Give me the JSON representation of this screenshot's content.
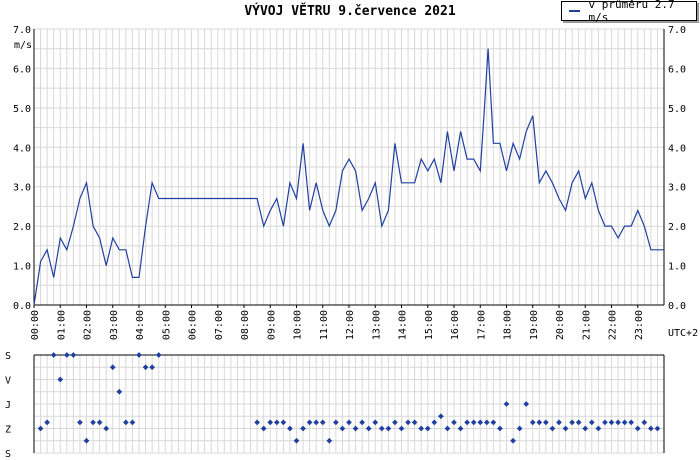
{
  "title": "VÝVOJ VĚTRU  9.července 2021",
  "legend": {
    "label": "v průměru 2.7 m/s",
    "color": "#2040a0"
  },
  "timezone_label": "UTC+2",
  "y_unit": "m/s",
  "colors": {
    "line": "#2040a0",
    "grid": "#d8d8d8",
    "axis": "#000000"
  },
  "chart_data": [
    {
      "type": "line",
      "title": "VÝVOJ VĚTRU  9.července 2021",
      "ylabel": "m/s",
      "ylim": [
        0,
        7
      ],
      "xlim": [
        0,
        24
      ],
      "grid": true,
      "legend_position": "top-right",
      "y_ticks": [
        "0.0",
        "1.0",
        "2.0",
        "3.0",
        "4.0",
        "5.0",
        "6.0",
        "7.0"
      ],
      "x_ticks": [
        "00:00",
        "01:00",
        "02:00",
        "03:00",
        "04:00",
        "05:00",
        "06:00",
        "07:00",
        "08:00",
        "09:00",
        "10:00",
        "11:00",
        "12:00",
        "13:00",
        "14:00",
        "15:00",
        "16:00",
        "17:00",
        "18:00",
        "19:00",
        "20:00",
        "21:00",
        "22:00",
        "23:00"
      ],
      "series": [
        {
          "name": "v průměru 2.7 m/s",
          "x": [
            0,
            0.25,
            0.5,
            0.75,
            1.0,
            1.25,
            1.5,
            1.75,
            2.0,
            2.25,
            2.5,
            2.75,
            3.0,
            3.25,
            3.5,
            3.75,
            4.0,
            4.25,
            4.5,
            4.75,
            5.0,
            8.5,
            8.75,
            9.0,
            9.25,
            9.5,
            9.75,
            10.0,
            10.25,
            10.5,
            10.75,
            11.0,
            11.25,
            11.5,
            11.75,
            12.0,
            12.25,
            12.5,
            12.75,
            13.0,
            13.25,
            13.5,
            13.75,
            14.0,
            14.25,
            14.5,
            14.75,
            15.0,
            15.25,
            15.5,
            15.75,
            16.0,
            16.25,
            16.5,
            16.75,
            17.0,
            17.15,
            17.3,
            17.5,
            17.75,
            18.0,
            18.25,
            18.5,
            18.75,
            19.0,
            19.25,
            19.5,
            19.75,
            20.0,
            20.25,
            20.5,
            20.75,
            21.0,
            21.25,
            21.5,
            21.75,
            22.0,
            22.25,
            22.5,
            22.75,
            23.0,
            23.25,
            23.5,
            23.75,
            24.0
          ],
          "y": [
            0.0,
            1.1,
            1.4,
            0.7,
            1.7,
            1.4,
            2.0,
            2.7,
            3.1,
            2.0,
            1.7,
            1.0,
            1.7,
            1.4,
            1.4,
            0.7,
            0.7,
            2.0,
            3.1,
            2.7,
            2.7,
            2.7,
            2.0,
            2.4,
            2.7,
            2.0,
            3.1,
            2.7,
            4.1,
            2.4,
            3.1,
            2.4,
            2.0,
            2.4,
            3.4,
            3.7,
            3.4,
            2.4,
            2.7,
            3.1,
            2.0,
            2.4,
            4.1,
            3.1,
            3.1,
            3.1,
            3.7,
            3.4,
            3.7,
            3.1,
            4.4,
            3.4,
            4.4,
            3.7,
            3.7,
            3.4,
            4.9,
            6.5,
            4.1,
            4.1,
            3.4,
            4.1,
            3.7,
            4.4,
            4.8,
            3.1,
            3.4,
            3.1,
            2.7,
            2.4,
            3.1,
            3.4,
            2.7,
            3.1,
            2.4,
            2.0,
            2.0,
            1.7,
            2.0,
            2.0,
            2.4,
            2.0,
            1.4,
            1.4,
            1.4
          ]
        }
      ]
    },
    {
      "type": "scatter",
      "y_categories": [
        "S",
        "V",
        "J",
        "Z",
        "S"
      ],
      "xlim": [
        0,
        24
      ],
      "grid": true,
      "points": [
        {
          "x": 0.25,
          "dir": "Z"
        },
        {
          "x": 0.5,
          "dir": "Z/J"
        },
        {
          "x": 0.75,
          "dir": "S"
        },
        {
          "x": 1.0,
          "dir": "V"
        },
        {
          "x": 1.25,
          "dir": "S"
        },
        {
          "x": 1.5,
          "dir": "S"
        },
        {
          "x": 1.75,
          "dir": "Z/J"
        },
        {
          "x": 2.0,
          "dir": "Z/S"
        },
        {
          "x": 2.25,
          "dir": "Z/J"
        },
        {
          "x": 2.5,
          "dir": "Z/J"
        },
        {
          "x": 2.75,
          "dir": "Z"
        },
        {
          "x": 3.0,
          "dir": "S/V"
        },
        {
          "x": 3.25,
          "dir": "J/V"
        },
        {
          "x": 3.5,
          "dir": "Z/J"
        },
        {
          "x": 3.75,
          "dir": "Z/J"
        },
        {
          "x": 4.0,
          "dir": "S"
        },
        {
          "x": 4.25,
          "dir": "S/V"
        },
        {
          "x": 4.5,
          "dir": "S/V"
        },
        {
          "x": 4.75,
          "dir": "S"
        },
        {
          "x": 8.5,
          "dir": "Z/J"
        },
        {
          "x": 8.75,
          "dir": "Z"
        },
        {
          "x": 9.0,
          "dir": "Z/J"
        },
        {
          "x": 9.25,
          "dir": "Z/J"
        },
        {
          "x": 9.5,
          "dir": "Z/J"
        },
        {
          "x": 9.75,
          "dir": "Z"
        },
        {
          "x": 10.0,
          "dir": "Z/S"
        },
        {
          "x": 10.25,
          "dir": "Z"
        },
        {
          "x": 10.5,
          "dir": "Z/J"
        },
        {
          "x": 10.75,
          "dir": "Z/J"
        },
        {
          "x": 11.0,
          "dir": "Z/J"
        },
        {
          "x": 11.25,
          "dir": "Z/S"
        },
        {
          "x": 11.5,
          "dir": "Z/J"
        },
        {
          "x": 11.75,
          "dir": "Z"
        },
        {
          "x": 12.0,
          "dir": "Z/J"
        },
        {
          "x": 12.25,
          "dir": "Z"
        },
        {
          "x": 12.5,
          "dir": "Z/J"
        },
        {
          "x": 12.75,
          "dir": "Z"
        },
        {
          "x": 13.0,
          "dir": "Z/J"
        },
        {
          "x": 13.25,
          "dir": "Z"
        },
        {
          "x": 13.5,
          "dir": "Z"
        },
        {
          "x": 13.75,
          "dir": "Z/J"
        },
        {
          "x": 14.0,
          "dir": "Z"
        },
        {
          "x": 14.25,
          "dir": "Z/J"
        },
        {
          "x": 14.5,
          "dir": "Z/J"
        },
        {
          "x": 14.75,
          "dir": "Z"
        },
        {
          "x": 15.0,
          "dir": "Z"
        },
        {
          "x": 15.25,
          "dir": "Z/J"
        },
        {
          "x": 15.5,
          "dir": "J/Z"
        },
        {
          "x": 15.75,
          "dir": "Z"
        },
        {
          "x": 16.0,
          "dir": "Z/J"
        },
        {
          "x": 16.25,
          "dir": "Z"
        },
        {
          "x": 16.5,
          "dir": "Z/J"
        },
        {
          "x": 16.75,
          "dir": "Z/J"
        },
        {
          "x": 17.0,
          "dir": "Z/J"
        },
        {
          "x": 17.25,
          "dir": "Z/J"
        },
        {
          "x": 17.5,
          "dir": "Z/J"
        },
        {
          "x": 17.75,
          "dir": "Z"
        },
        {
          "x": 18.0,
          "dir": "J"
        },
        {
          "x": 18.25,
          "dir": "Z/S"
        },
        {
          "x": 18.5,
          "dir": "Z"
        },
        {
          "x": 18.75,
          "dir": "J"
        },
        {
          "x": 19.0,
          "dir": "Z/J"
        },
        {
          "x": 19.25,
          "dir": "Z/J"
        },
        {
          "x": 19.5,
          "dir": "Z/J"
        },
        {
          "x": 19.75,
          "dir": "Z"
        },
        {
          "x": 20.0,
          "dir": "Z/J"
        },
        {
          "x": 20.25,
          "dir": "Z"
        },
        {
          "x": 20.5,
          "dir": "Z/J"
        },
        {
          "x": 20.75,
          "dir": "Z/J"
        },
        {
          "x": 21.0,
          "dir": "Z"
        },
        {
          "x": 21.25,
          "dir": "Z/J"
        },
        {
          "x": 21.5,
          "dir": "Z"
        },
        {
          "x": 21.75,
          "dir": "Z/J"
        },
        {
          "x": 22.0,
          "dir": "Z/J"
        },
        {
          "x": 22.25,
          "dir": "Z/J"
        },
        {
          "x": 22.5,
          "dir": "Z/J"
        },
        {
          "x": 22.75,
          "dir": "Z/J"
        },
        {
          "x": 23.0,
          "dir": "Z"
        },
        {
          "x": 23.25,
          "dir": "Z/J"
        },
        {
          "x": 23.5,
          "dir": "Z"
        },
        {
          "x": 23.75,
          "dir": "Z"
        }
      ]
    }
  ]
}
